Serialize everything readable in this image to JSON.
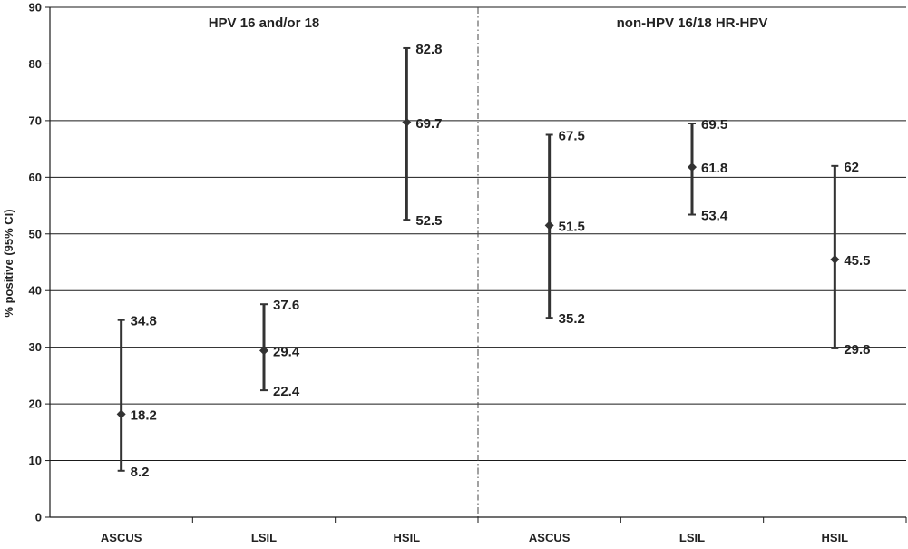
{
  "chart_data": {
    "type": "error-bar",
    "ylabel": "% positive (95% CI)",
    "ylim": [
      0,
      90
    ],
    "yticks": [
      0,
      10,
      20,
      30,
      40,
      50,
      60,
      70,
      80,
      90
    ],
    "grid": "horizontal",
    "groups": [
      {
        "title": "HPV 16 and/or 18",
        "categories": [
          "ASCUS",
          "LSIL",
          "HSIL"
        ]
      },
      {
        "title": "non-HPV 16/18 HR-HPV",
        "categories": [
          "ASCUS",
          "LSIL",
          "HSIL"
        ]
      }
    ],
    "points": [
      {
        "group": "HPV 16 and/or 18",
        "category": "ASCUS",
        "value": 18.2,
        "low": 8.2,
        "high": 34.8,
        "value_label": "18.2",
        "low_label": "8.2",
        "high_label": "34.8"
      },
      {
        "group": "HPV 16 and/or 18",
        "category": "LSIL",
        "value": 29.4,
        "low": 22.4,
        "high": 37.6,
        "value_label": "29.4",
        "low_label": "22.4",
        "high_label": "37.6"
      },
      {
        "group": "HPV 16 and/or 18",
        "category": "HSIL",
        "value": 69.7,
        "low": 52.5,
        "high": 82.8,
        "value_label": "69.7",
        "low_label": "52.5",
        "high_label": "82.8"
      },
      {
        "group": "non-HPV 16/18 HR-HPV",
        "category": "ASCUS",
        "value": 51.5,
        "low": 35.2,
        "high": 67.5,
        "value_label": "51.5",
        "low_label": "35.2",
        "high_label": "67.5"
      },
      {
        "group": "non-HPV 16/18 HR-HPV",
        "category": "LSIL",
        "value": 61.8,
        "low": 53.4,
        "high": 69.5,
        "value_label": "61.8",
        "low_label": "53.4",
        "high_label": "69.5"
      },
      {
        "group": "non-HPV 16/18 HR-HPV",
        "category": "HSIL",
        "value": 45.5,
        "low": 29.8,
        "high": 62,
        "value_label": "45.5",
        "low_label": "29.8",
        "high_label": "62"
      }
    ],
    "colors": {
      "marks": "#333333",
      "grid": "#1a1a1a",
      "axis": "#1a1a1a",
      "divider": "#444444"
    }
  }
}
